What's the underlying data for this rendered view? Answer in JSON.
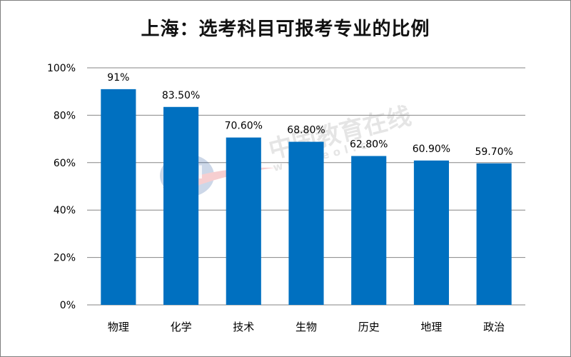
{
  "chart_data": {
    "type": "bar",
    "title": "上海：选考科目可报考专业的比例",
    "categories": [
      "物理",
      "化学",
      "技术",
      "生物",
      "历史",
      "地理",
      "政治"
    ],
    "values": [
      91,
      83.5,
      70.6,
      68.8,
      62.8,
      60.9,
      59.7
    ],
    "data_labels": [
      "91%",
      "83.50%",
      "70.60%",
      "68.80%",
      "62.80%",
      "60.90%",
      "59.70%"
    ],
    "y_ticks": [
      "0%",
      "20%",
      "40%",
      "60%",
      "80%",
      "100%"
    ],
    "ylim": [
      0,
      100
    ],
    "grid": true,
    "bar_color": "#0070c0"
  },
  "watermark": {
    "text_cn": "中国教育在线",
    "text_url": "www.eol.cn",
    "logo_text": "eol"
  }
}
